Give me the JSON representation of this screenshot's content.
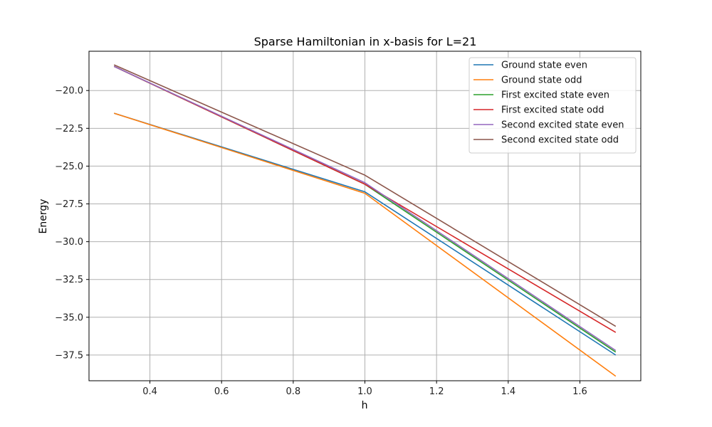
{
  "chart_data": {
    "type": "line",
    "title": "Sparse Hamiltonian in x-basis for L=21",
    "xlabel": "h",
    "ylabel": "Energy",
    "xlim": [
      0.23,
      1.77
    ],
    "ylim": [
      -39.2,
      -17.4
    ],
    "xticks": [
      0.4,
      0.6,
      0.8,
      1.0,
      1.2,
      1.4,
      1.6
    ],
    "xtick_labels": [
      "0.4",
      "0.6",
      "0.8",
      "1.0",
      "1.2",
      "1.4",
      "1.6"
    ],
    "yticks": [
      -20.0,
      -22.5,
      -25.0,
      -27.5,
      -30.0,
      -32.5,
      -35.0,
      -37.5
    ],
    "ytick_labels": [
      "−20.0",
      "−22.5",
      "−25.0",
      "−27.5",
      "−30.0",
      "−32.5",
      "−35.0",
      "−37.5"
    ],
    "grid": true,
    "legend_position": "top-right",
    "x": [
      0.3,
      1.0,
      1.7
    ],
    "series": [
      {
        "name": "Ground state even",
        "color": "#1f77b4",
        "values": [
          -21.5,
          -26.7,
          -37.5
        ]
      },
      {
        "name": "Ground state odd",
        "color": "#ff7f0e",
        "values": [
          -21.5,
          -26.8,
          -38.9
        ]
      },
      {
        "name": "First excited state even",
        "color": "#2ca02c",
        "values": [
          -18.4,
          -26.2,
          -37.3
        ]
      },
      {
        "name": "First excited state odd",
        "color": "#d62728",
        "values": [
          -18.4,
          -26.2,
          -36.0
        ]
      },
      {
        "name": "Second excited state even",
        "color": "#9467bd",
        "values": [
          -18.4,
          -26.1,
          -37.2
        ]
      },
      {
        "name": "Second excited state odd",
        "color": "#8c564b",
        "values": [
          -18.3,
          -25.6,
          -35.6
        ]
      }
    ]
  }
}
